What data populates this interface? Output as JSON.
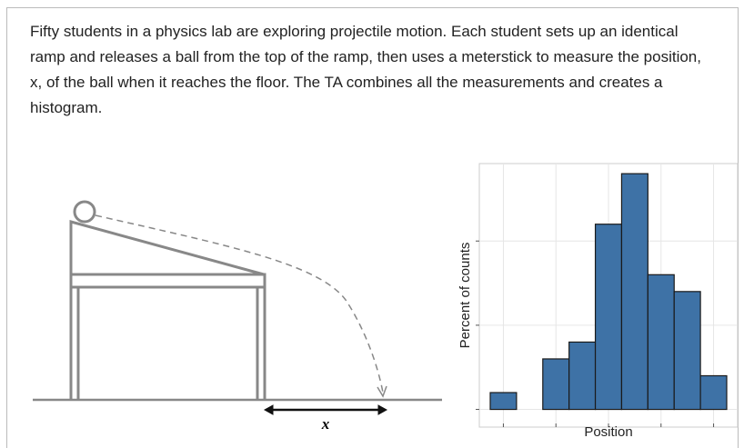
{
  "question": {
    "text": "Fifty students in a physics lab are exploring projectile motion. Each student sets up an identical ramp and releases a ball from the top of the ramp, then uses a meterstick to measure the position, x, of the ball when it reaches the floor. The TA combines all the measurements and creates a histogram."
  },
  "diagram": {
    "distance_label": "x"
  },
  "chart_data": {
    "type": "histogram",
    "xlabel": "Position",
    "ylabel": "Percent of counts",
    "values": [
      2,
      0,
      6,
      8,
      22,
      28,
      16,
      14,
      4
    ],
    "color": "#3e72a6",
    "ylim": [
      -2.1,
      29.2
    ],
    "yticks": [
      0,
      10,
      20
    ],
    "grid": true
  }
}
